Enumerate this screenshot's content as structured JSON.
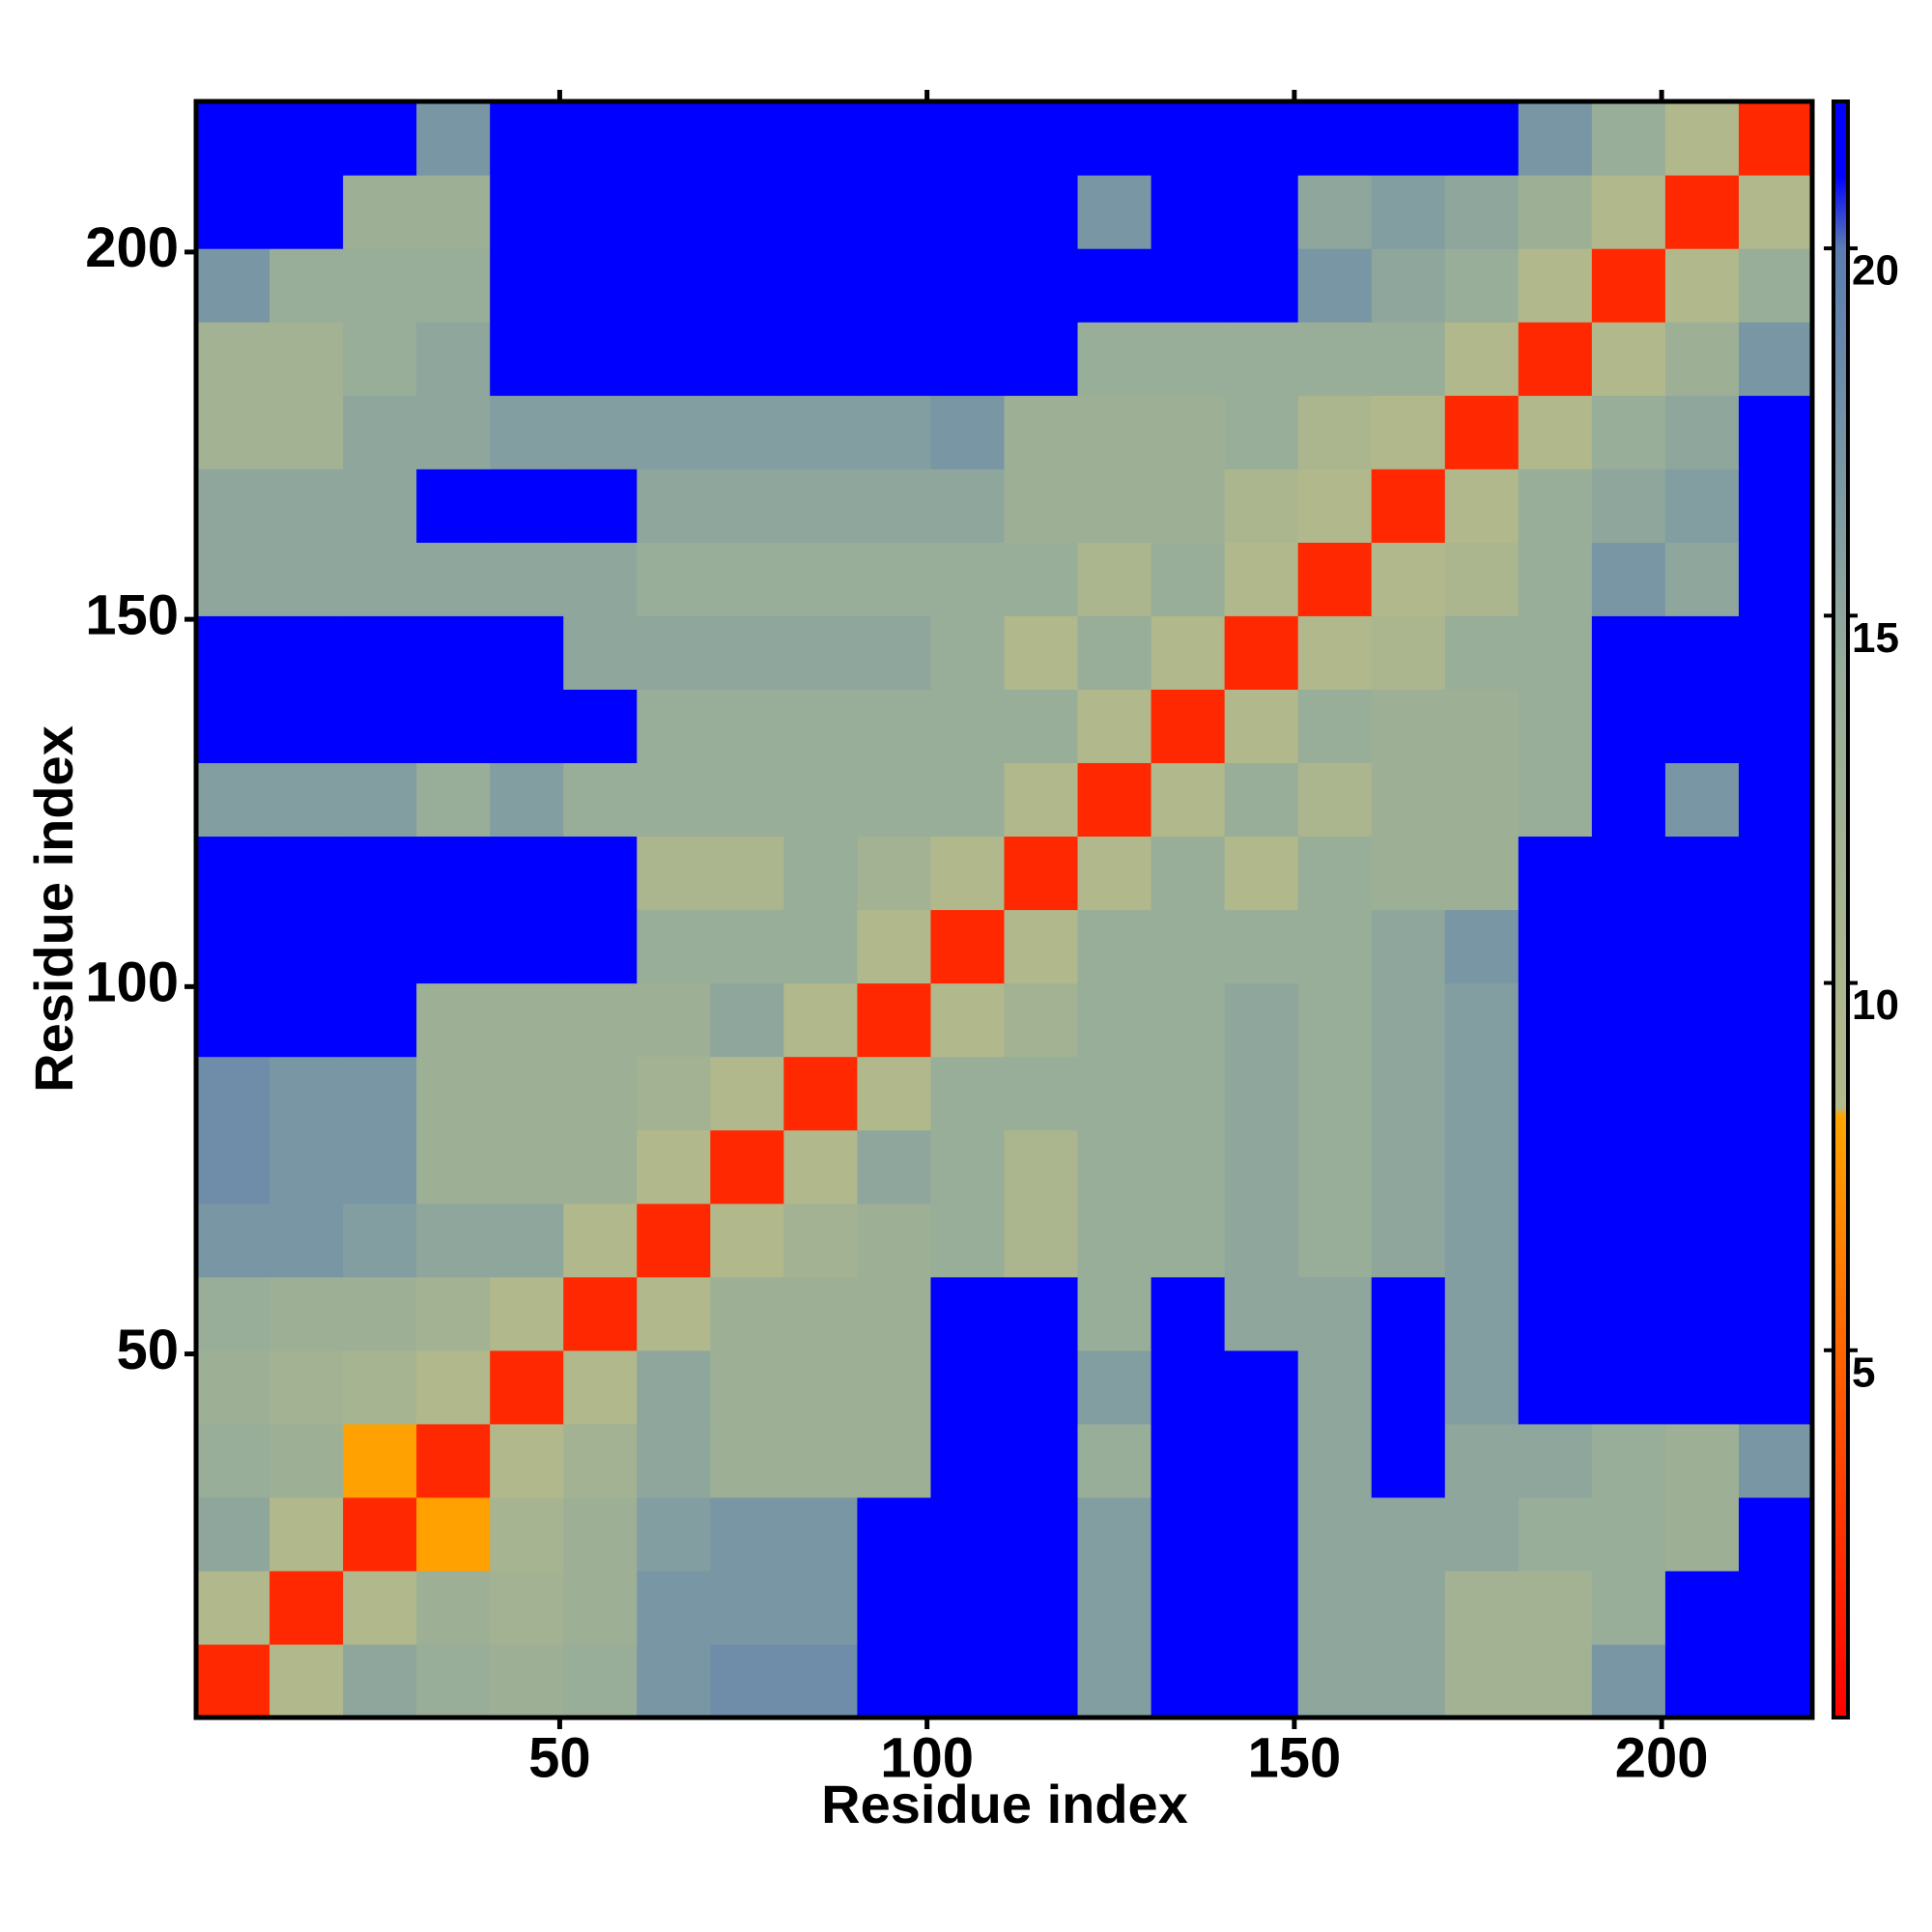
{
  "chart_data": {
    "type": "heatmap",
    "x_label": "Residue index",
    "y_label": "Residue index",
    "x_bins": [
      0.5,
      10.5,
      20.5,
      30.5,
      40.5,
      50.5,
      60.5,
      70.5,
      80.5,
      90.5,
      100.5,
      110.5,
      120.5,
      130.5,
      140.5,
      150.5,
      160.5,
      170.5,
      180.5,
      190.5,
      200.5,
      210.5,
      220.5
    ],
    "y_bins": [
      0.5,
      10.5,
      20.5,
      30.5,
      40.5,
      50.5,
      60.5,
      70.5,
      80.5,
      90.5,
      100.5,
      110.5,
      120.5,
      130.5,
      140.5,
      150.5,
      160.5,
      170.5,
      180.5,
      190.5,
      200.5,
      210.5,
      220.5
    ],
    "xlim": [
      0.5,
      220.5
    ],
    "ylim": [
      0.5,
      220.5
    ],
    "xticks": [
      50,
      100,
      150,
      200
    ],
    "yticks": [
      50,
      100,
      150,
      200
    ],
    "clim": [
      0,
      22
    ],
    "cticks": [
      5,
      10,
      15,
      20
    ],
    "colorscale": [
      [
        0,
        "#ff0000"
      ],
      [
        4,
        "#ff5000"
      ],
      [
        8.2,
        "#ffa500"
      ],
      [
        8.3,
        "#b4b98a"
      ],
      [
        14,
        "#98ae98"
      ],
      [
        20,
        "#5a7db0"
      ],
      [
        21,
        "#0000ff"
      ],
      [
        22,
        "#0000ff"
      ]
    ],
    "values": [
      [
        2,
        9,
        15,
        14,
        13,
        14,
        17,
        18,
        18,
        22,
        22,
        22,
        16,
        22,
        22,
        15,
        15,
        12,
        12,
        17,
        22,
        22
      ],
      [
        9,
        2,
        9,
        13,
        12,
        13,
        17,
        17,
        17,
        22,
        22,
        22,
        16,
        22,
        22,
        15,
        15,
        12,
        12,
        14,
        22,
        22
      ],
      [
        15,
        9,
        2,
        8,
        11,
        13,
        16,
        17,
        17,
        22,
        22,
        22,
        16,
        22,
        22,
        15,
        15,
        15,
        14,
        14,
        13,
        22
      ],
      [
        14,
        13,
        8,
        2,
        9,
        12,
        15,
        13,
        13,
        13,
        22,
        22,
        14,
        22,
        22,
        15,
        22,
        15,
        15,
        14,
        13,
        17
      ],
      [
        13,
        12,
        11,
        9,
        2,
        9,
        15,
        13,
        13,
        13,
        22,
        22,
        16,
        22,
        22,
        15,
        22,
        16,
        22,
        22,
        22,
        22
      ],
      [
        14,
        13,
        13,
        12,
        9,
        2,
        9,
        13,
        13,
        13,
        22,
        22,
        14,
        22,
        15,
        15,
        22,
        16,
        22,
        22,
        22,
        22
      ],
      [
        17,
        17,
        16,
        15,
        15,
        9,
        2,
        9,
        12,
        13,
        14,
        10,
        14,
        14,
        15,
        14,
        15,
        16,
        22,
        22,
        22,
        22
      ],
      [
        18,
        17,
        17,
        13,
        13,
        13,
        9,
        2,
        9,
        15,
        14,
        10,
        14,
        14,
        15,
        14,
        15,
        16,
        22,
        22,
        22,
        22
      ],
      [
        18,
        17,
        17,
        13,
        13,
        13,
        12,
        9,
        2,
        9,
        14,
        14,
        14,
        14,
        15,
        14,
        15,
        16,
        22,
        22,
        22,
        22
      ],
      [
        22,
        22,
        22,
        13,
        13,
        13,
        13,
        15,
        9,
        2,
        9,
        12,
        14,
        14,
        15,
        14,
        15,
        16,
        22,
        22,
        22,
        22
      ],
      [
        22,
        22,
        22,
        22,
        22,
        22,
        14,
        14,
        14,
        9,
        2,
        9,
        14,
        14,
        14,
        14,
        15,
        17,
        22,
        22,
        22,
        22
      ],
      [
        22,
        22,
        22,
        22,
        22,
        22,
        10,
        10,
        14,
        12,
        9,
        2,
        9,
        14,
        9,
        14,
        13,
        13,
        22,
        22,
        22,
        22
      ],
      [
        16,
        16,
        16,
        14,
        16,
        14,
        14,
        14,
        14,
        14,
        14,
        9,
        2,
        9,
        14,
        10,
        13,
        13,
        14,
        22,
        17,
        22
      ],
      [
        22,
        22,
        22,
        22,
        22,
        22,
        14,
        14,
        14,
        14,
        14,
        14,
        9,
        2,
        9,
        14,
        13,
        13,
        14,
        22,
        22,
        22
      ],
      [
        22,
        22,
        22,
        22,
        22,
        15,
        15,
        15,
        15,
        15,
        14,
        9,
        14,
        9,
        2,
        9,
        10,
        14,
        14,
        22,
        22,
        22
      ],
      [
        15,
        15,
        15,
        15,
        15,
        15,
        14,
        14,
        14,
        14,
        14,
        14,
        10,
        14,
        9,
        2,
        9,
        10,
        14,
        17,
        15,
        22
      ],
      [
        15,
        15,
        15,
        22,
        22,
        22,
        15,
        15,
        15,
        15,
        15,
        13,
        13,
        13,
        10,
        9,
        2,
        9,
        14,
        15,
        16,
        22
      ],
      [
        12,
        12,
        15,
        15,
        16,
        16,
        16,
        16,
        16,
        16,
        17,
        13,
        13,
        13,
        14,
        10,
        9,
        2,
        9,
        14,
        15,
        22
      ],
      [
        12,
        12,
        14,
        15,
        22,
        22,
        22,
        22,
        22,
        22,
        22,
        22,
        14,
        14,
        14,
        14,
        14,
        9,
        2,
        9,
        13,
        17
      ],
      [
        17,
        14,
        14,
        14,
        22,
        22,
        22,
        22,
        22,
        22,
        22,
        22,
        22,
        22,
        22,
        17,
        15,
        14,
        9,
        2,
        9,
        14
      ],
      [
        22,
        22,
        13,
        13,
        22,
        22,
        22,
        22,
        22,
        22,
        22,
        22,
        17,
        22,
        22,
        15,
        16,
        15,
        13,
        9,
        2,
        9
      ],
      [
        22,
        22,
        22,
        17,
        22,
        22,
        22,
        22,
        22,
        22,
        22,
        22,
        22,
        22,
        22,
        22,
        22,
        22,
        17,
        14,
        9,
        2
      ]
    ]
  }
}
